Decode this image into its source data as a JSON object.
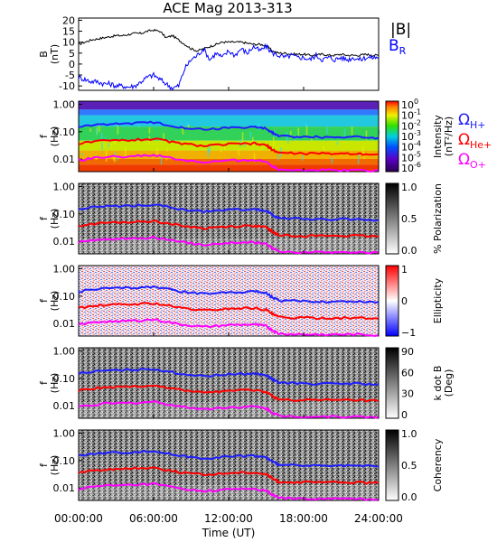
{
  "chart_data": {
    "title": "ACE Mag 2013-313",
    "xlabel": "Time (UT)",
    "x_tick_labels": [
      "00:00:00",
      "06:00:00",
      "12:00:00",
      "18:00:00",
      "24:00:00"
    ],
    "x_range_hours": [
      0,
      24
    ],
    "panels": [
      {
        "type": "line",
        "ylabel": "B (nT)",
        "ylim": [
          -12,
          21
        ],
        "y_ticks": [
          -10,
          -5,
          0,
          5,
          10,
          15,
          20
        ],
        "series": [
          {
            "name": "|B|",
            "color": "#000000",
            "x": [
              0,
              0.5,
              1,
              1.5,
              2,
              2.5,
              3,
              3.5,
              4,
              4.5,
              5,
              5.5,
              6,
              6.5,
              7,
              7.5,
              8,
              8.5,
              9,
              9.5,
              10,
              10.5,
              11,
              11.5,
              12,
              12.5,
              13,
              13.5,
              14,
              14.5,
              15,
              15.5,
              16,
              16.5,
              17,
              17.5,
              18,
              18.5,
              19,
              19.5,
              20,
              20.5,
              21,
              21.5,
              22,
              22.5,
              23,
              23.5,
              24
            ],
            "values": [
              9,
              10,
              11,
              11.5,
              12,
              12.5,
              13,
              13,
              13.5,
              14,
              14,
              15,
              15.5,
              15,
              12,
              13,
              11,
              9,
              7,
              6,
              7,
              8,
              9,
              10,
              10,
              10,
              10,
              9.5,
              9,
              9,
              8.5,
              6,
              5,
              5,
              4.5,
              4.5,
              4.5,
              4,
              4,
              4.5,
              4,
              4,
              4.5,
              4,
              4,
              4,
              4.5,
              4,
              4
            ]
          },
          {
            "name": "B_R",
            "color": "#0000ff",
            "x": [
              0,
              0.5,
              1,
              1.5,
              2,
              2.5,
              3,
              3.5,
              4,
              4.5,
              5,
              5.5,
              6,
              6.5,
              7,
              7.5,
              8,
              8.5,
              9,
              9.5,
              10,
              10.5,
              11,
              11.5,
              12,
              12.5,
              13,
              13.5,
              14,
              14.5,
              15,
              15.5,
              16,
              16.5,
              17,
              17.5,
              18,
              18.5,
              19,
              19.5,
              20,
              20.5,
              21,
              21.5,
              22,
              22.5,
              23,
              23.5,
              24
            ],
            "values": [
              -6,
              -7,
              -8,
              -8,
              -9,
              -9,
              -10,
              -10,
              -10.5,
              -10,
              -8,
              -6,
              -5,
              -7,
              -9,
              -11,
              -10,
              -2,
              2,
              4,
              7,
              2,
              5,
              3,
              6,
              4,
              7,
              5,
              8,
              6,
              8,
              5,
              4,
              3,
              4,
              3,
              3,
              2,
              4,
              2,
              3,
              2,
              3,
              2,
              3,
              2,
              3,
              3,
              3
            ]
          }
        ]
      },
      {
        "type": "heatmap",
        "ylabel": "f (Hz)",
        "colorbar_label": "Intensity (nT²/Hz)",
        "colorbar_ticks": [
          "10^0",
          "10^-1",
          "10^-2",
          "10^-3",
          "10^-4",
          "10^-5",
          "10^-6"
        ],
        "colorscale": "rainbow"
      },
      {
        "type": "heatmap",
        "ylabel": "f (Hz)",
        "colorbar_label": "% Polarization",
        "colorbar_ticks": [
          "1.0",
          "0.5",
          "0.0"
        ],
        "colorscale": "gray"
      },
      {
        "type": "heatmap",
        "ylabel": "f (Hz)",
        "colorbar_label": "Ellipticity",
        "colorbar_ticks": [
          "1",
          "0",
          "−1"
        ],
        "colorscale": "blue-white-red"
      },
      {
        "type": "heatmap",
        "ylabel": "f (Hz)",
        "colorbar_label": "k dot B (Deg)",
        "colorbar_ticks": [
          "90",
          "60",
          "30",
          "0"
        ],
        "colorscale": "gray"
      },
      {
        "type": "heatmap",
        "ylabel": "f (Hz)",
        "colorbar_label": "Coherency",
        "colorbar_ticks": [
          "1.0",
          "0.5",
          "0.0"
        ],
        "colorscale": "gray"
      }
    ],
    "freq_axis": {
      "scale": "log",
      "ylim": [
        0.0035,
        1.3
      ],
      "tick_labels": [
        "1.00",
        "0.10",
        "0.01"
      ]
    },
    "gyrofrequency_overlays": [
      {
        "name": "ΩH+",
        "color": "#1f1fff",
        "x": [
          0,
          2,
          4,
          6,
          8,
          10,
          12,
          14,
          15,
          15.5,
          16,
          18,
          20,
          22,
          24
        ],
        "values": [
          0.15,
          0.19,
          0.2,
          0.22,
          0.15,
          0.12,
          0.14,
          0.15,
          0.13,
          0.09,
          0.07,
          0.065,
          0.063,
          0.065,
          0.06
        ]
      },
      {
        "name": "ΩHe+",
        "color": "#ff0000",
        "x": [
          0,
          2,
          4,
          6,
          8,
          10,
          12,
          14,
          15,
          15.5,
          16,
          18,
          20,
          22,
          24
        ],
        "values": [
          0.037,
          0.047,
          0.05,
          0.055,
          0.038,
          0.03,
          0.035,
          0.037,
          0.032,
          0.022,
          0.017,
          0.016,
          0.016,
          0.016,
          0.015
        ]
      },
      {
        "name": "ΩO+",
        "color": "#ff00ff",
        "x": [
          0,
          2,
          4,
          6,
          8,
          10,
          12,
          14,
          15,
          15.5,
          16,
          18,
          20,
          22,
          24
        ],
        "values": [
          0.0092,
          0.012,
          0.0125,
          0.014,
          0.0095,
          0.0075,
          0.0088,
          0.0093,
          0.008,
          0.0056,
          0.0043,
          0.004,
          0.004,
          0.004,
          0.0038
        ]
      }
    ],
    "legend": {
      "B_label": "|B|",
      "BR_label": "B",
      "BR_sub": "R",
      "omega_labels": [
        {
          "sym": "Ω",
          "sub": "H+",
          "color": "#1f1fff"
        },
        {
          "sym": "Ω",
          "sub": "He+",
          "color": "#ff0000"
        },
        {
          "sym": "Ω",
          "sub": "O+",
          "color": "#ff00ff"
        }
      ]
    }
  }
}
